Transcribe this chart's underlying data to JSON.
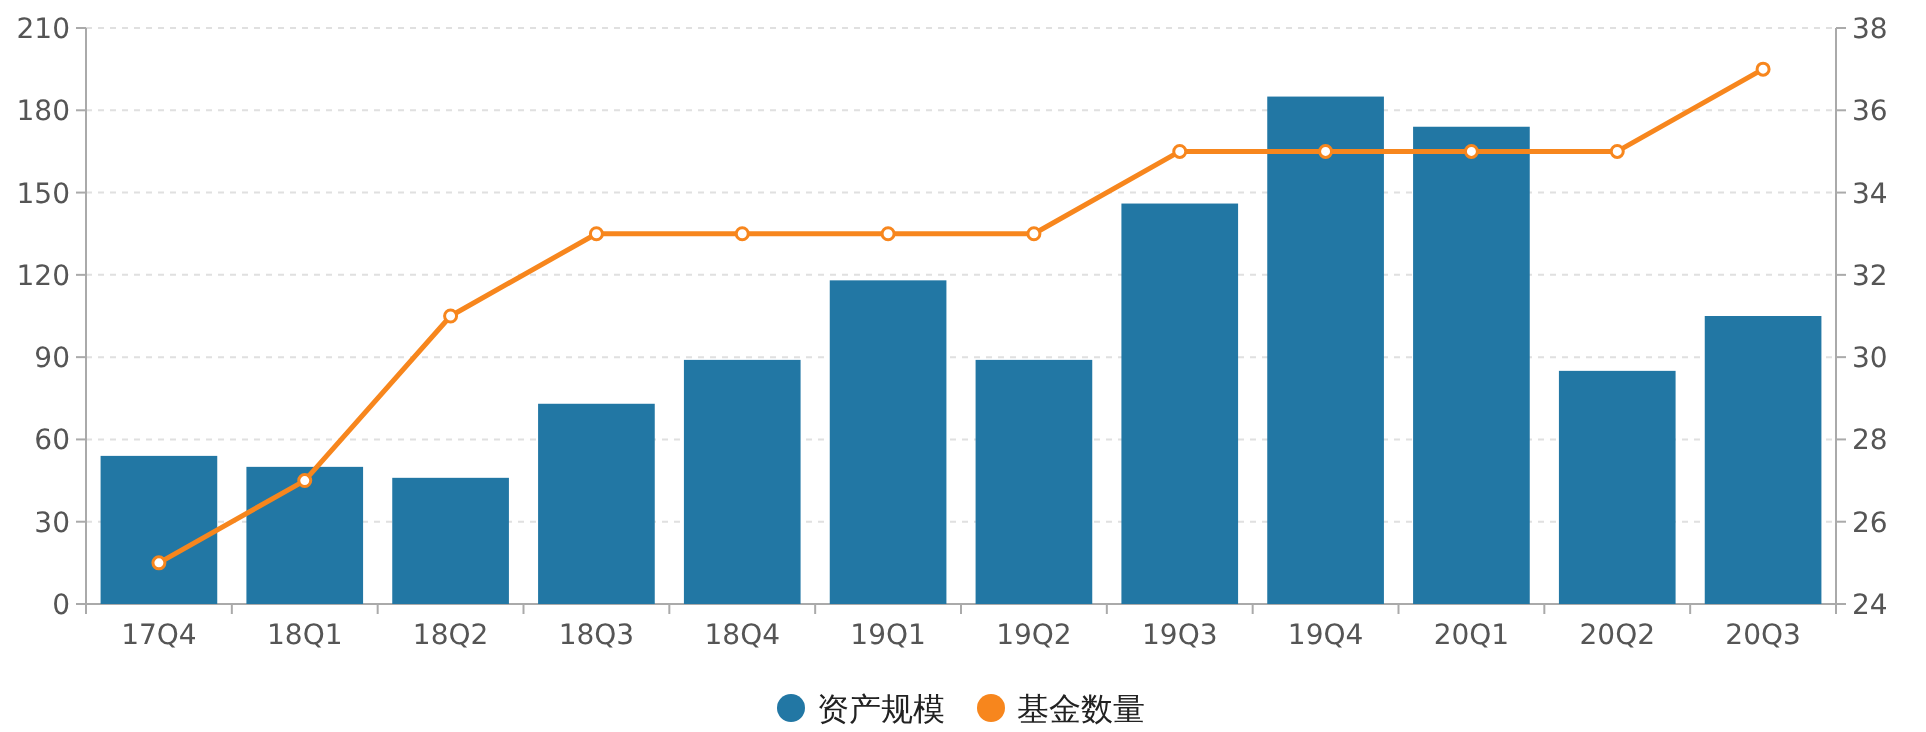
{
  "chart_data": {
    "type": "bar",
    "categories": [
      "17Q4",
      "18Q1",
      "18Q2",
      "18Q3",
      "18Q4",
      "19Q1",
      "19Q2",
      "19Q3",
      "19Q4",
      "20Q1",
      "20Q2",
      "20Q3"
    ],
    "series": [
      {
        "name": "资产规模",
        "color": "#2277a4",
        "values": [
          54,
          50,
          46,
          73,
          89,
          118,
          89,
          146,
          185,
          174,
          85,
          105
        ]
      },
      {
        "name": "基金数量",
        "type": "line",
        "axis": "y2",
        "color": "#f7861d",
        "values": [
          25,
          27,
          31,
          33,
          33,
          33,
          33,
          35,
          35,
          35,
          35,
          37
        ]
      }
    ],
    "ylim": [
      0,
      210
    ],
    "yticks": [
      0,
      30,
      60,
      90,
      120,
      150,
      180,
      210
    ],
    "y2lim": [
      24,
      38
    ],
    "y2ticks": [
      24,
      26,
      28,
      30,
      32,
      34,
      36,
      38
    ],
    "grid": "y",
    "legend": "bottom",
    "marker": "circle",
    "line_style": "solid"
  }
}
